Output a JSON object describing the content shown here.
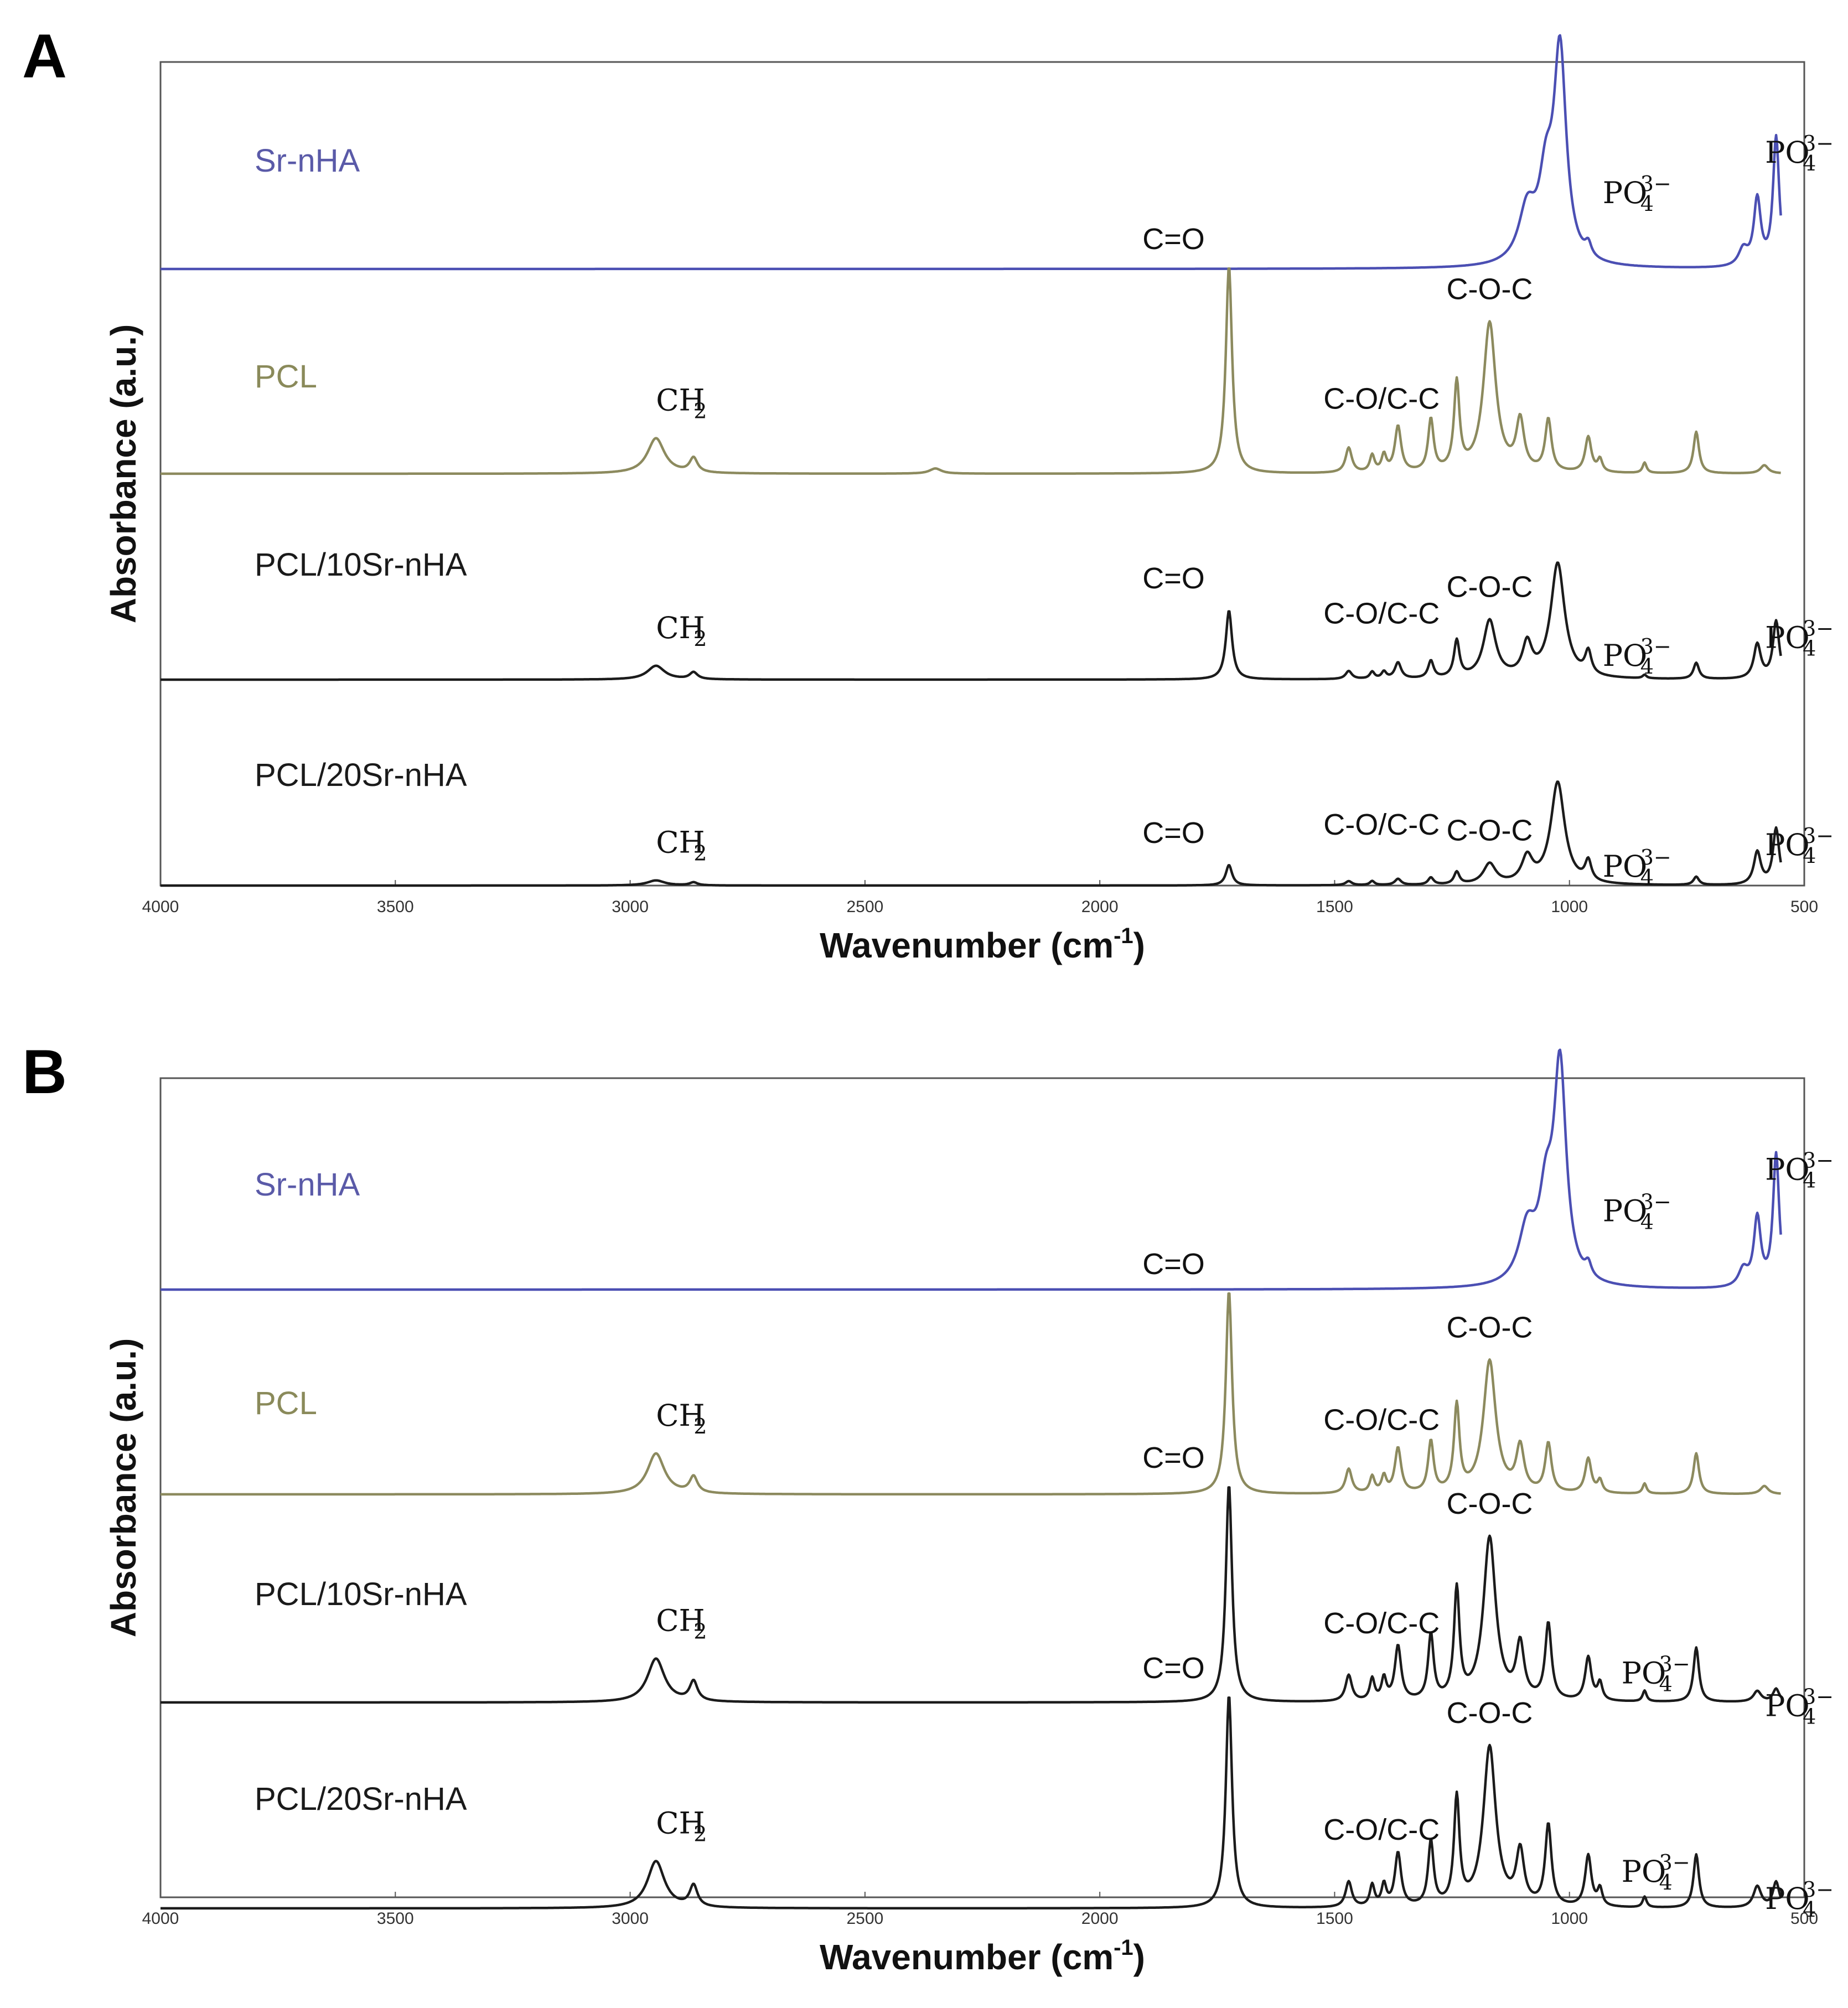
{
  "chart_data": [
    {
      "type": "line",
      "panel": "A",
      "xlabel": "Wavenumber (cm",
      "xlabel_sup": "-1",
      "xlabel_close": ")",
      "ylabel": "Absorbance (a.u.)",
      "xlim": [
        4000,
        500
      ],
      "x_ticks": [
        "4000",
        "3500",
        "3000",
        "2500",
        "2000",
        "1500",
        "1000",
        "500"
      ],
      "grid": false,
      "series": [
        {
          "name": "Sr-nHA",
          "color": "#4b4fb3",
          "label_color": "#5a5aa8",
          "scale": 1.0,
          "peaks": [
            [
              1020,
              1.0,
              16
            ],
            [
              1090,
              0.25,
              22
            ],
            [
              1050,
              0.35,
              18
            ],
            [
              960,
              0.06,
              8
            ],
            [
              600,
              0.32,
              9
            ],
            [
              560,
              0.62,
              8
            ],
            [
              630,
              0.08,
              12
            ]
          ],
          "annotations": [
            {
              "type": "ion",
              "base": "PO",
              "sub": "4",
              "sup": "3−",
              "near": 1000
            },
            {
              "type": "ion",
              "base": "PO",
              "sub": "4",
              "sup": "3−",
              "near": 560
            }
          ]
        },
        {
          "name": "PCL",
          "color": "#8c8a5e",
          "label_color": "#8a8a5a",
          "scale": 1.0,
          "peaks": [
            [
              2945,
              0.17,
              22
            ],
            [
              2865,
              0.07,
              10
            ],
            [
              2350,
              0.025,
              15
            ],
            [
              1725,
              1.0,
              8
            ],
            [
              1470,
              0.12,
              8
            ],
            [
              1420,
              0.08,
              6
            ],
            [
              1395,
              0.08,
              6
            ],
            [
              1365,
              0.22,
              8
            ],
            [
              1295,
              0.25,
              7
            ],
            [
              1240,
              0.42,
              7
            ],
            [
              1170,
              0.72,
              16
            ],
            [
              1105,
              0.24,
              10
            ],
            [
              1045,
              0.25,
              8
            ],
            [
              960,
              0.17,
              8
            ],
            [
              935,
              0.06,
              6
            ],
            [
              840,
              0.05,
              5
            ],
            [
              730,
              0.2,
              7
            ],
            [
              585,
              0.04,
              10
            ]
          ],
          "annotations": [
            {
              "type": "ion",
              "base": "CH",
              "sub": "2",
              "near": 2945
            },
            {
              "type": "text",
              "text": "C=O",
              "near": 1725
            },
            {
              "type": "text",
              "text": "C-O/C-C",
              "near": 1400
            },
            {
              "type": "text",
              "text": "C-O-C",
              "near": 1170
            }
          ]
        },
        {
          "name": "PCL/10Sr-nHA",
          "color": "#1b1b1b",
          "label_color": "#1a1a1a",
          "scale": 0.52,
          "peaks": [
            [
              2945,
              0.12,
              22
            ],
            [
              2865,
              0.06,
              10
            ],
            [
              1725,
              0.6,
              8
            ],
            [
              1470,
              0.07,
              8
            ],
            [
              1420,
              0.06,
              6
            ],
            [
              1395,
              0.06,
              6
            ],
            [
              1365,
              0.14,
              8
            ],
            [
              1295,
              0.15,
              7
            ],
            [
              1240,
              0.32,
              7
            ],
            [
              1170,
              0.5,
              16
            ],
            [
              1090,
              0.28,
              12
            ],
            [
              1025,
              1.0,
              18
            ],
            [
              960,
              0.2,
              8
            ],
            [
              840,
              0.03,
              5
            ],
            [
              730,
              0.14,
              7
            ],
            [
              600,
              0.3,
              9
            ],
            [
              560,
              0.5,
              8
            ]
          ],
          "annotations": [
            {
              "type": "ion",
              "base": "CH",
              "sub": "2",
              "near": 2945
            },
            {
              "type": "text",
              "text": "C=O",
              "near": 1725
            },
            {
              "type": "text",
              "text": "C-O/C-C",
              "near": 1400
            },
            {
              "type": "text",
              "text": "C-O-C",
              "near": 1170
            },
            {
              "type": "ion",
              "base": "PO",
              "sub": "4",
              "sup": "3−",
              "near": 1000
            },
            {
              "type": "ion",
              "base": "PO",
              "sub": "4",
              "sup": "3−",
              "near": 560
            }
          ]
        },
        {
          "name": "PCL/20Sr-nHA",
          "color": "#1b1b1b",
          "label_color": "#1a1a1a",
          "scale": 0.5,
          "peaks": [
            [
              2945,
              0.05,
              22
            ],
            [
              2865,
              0.03,
              10
            ],
            [
              1725,
              0.2,
              8
            ],
            [
              1470,
              0.04,
              8
            ],
            [
              1420,
              0.04,
              6
            ],
            [
              1365,
              0.06,
              8
            ],
            [
              1295,
              0.07,
              7
            ],
            [
              1240,
              0.12,
              7
            ],
            [
              1170,
              0.2,
              16
            ],
            [
              1090,
              0.25,
              14
            ],
            [
              1025,
              1.0,
              18
            ],
            [
              960,
              0.2,
              8
            ],
            [
              730,
              0.08,
              7
            ],
            [
              600,
              0.32,
              9
            ],
            [
              560,
              0.55,
              8
            ]
          ],
          "annotations": [
            {
              "type": "ion",
              "base": "CH",
              "sub": "2",
              "near": 2945
            },
            {
              "type": "text",
              "text": "C=O",
              "near": 1725
            },
            {
              "type": "text",
              "text": "C-O/C-C",
              "near": 1400
            },
            {
              "type": "text",
              "text": "C-O-C",
              "near": 1170
            },
            {
              "type": "ion",
              "base": "PO",
              "sub": "4",
              "sup": "3−",
              "near": 1000
            },
            {
              "type": "ion",
              "base": "PO",
              "sub": "4",
              "sup": "3−",
              "near": 560
            }
          ]
        }
      ]
    },
    {
      "type": "line",
      "panel": "B",
      "xlabel": "Wavenumber (cm",
      "xlabel_sup": "-1",
      "xlabel_close": ")",
      "ylabel": "Absorbance (a.u.)",
      "xlim": [
        4000,
        500
      ],
      "x_ticks": [
        "4000",
        "3500",
        "3000",
        "2500",
        "2000",
        "1500",
        "1000",
        "500"
      ],
      "grid": false,
      "series": [
        {
          "name": "Sr-nHA",
          "color": "#4b4fb3",
          "label_color": "#5a5aa8",
          "scale": 1.0,
          "peaks": [
            [
              1020,
              1.0,
              16
            ],
            [
              1090,
              0.25,
              22
            ],
            [
              1050,
              0.35,
              18
            ],
            [
              960,
              0.06,
              8
            ],
            [
              600,
              0.32,
              9
            ],
            [
              560,
              0.62,
              8
            ],
            [
              630,
              0.08,
              12
            ]
          ],
          "annotations": [
            {
              "type": "ion",
              "base": "PO",
              "sub": "4",
              "sup": "3−",
              "near": 1000
            },
            {
              "type": "ion",
              "base": "PO",
              "sub": "4",
              "sup": "3−",
              "near": 560
            }
          ]
        },
        {
          "name": "PCL",
          "color": "#8c8a5e",
          "label_color": "#8a8a5a",
          "scale": 1.0,
          "peaks": [
            [
              2945,
              0.2,
              22
            ],
            [
              2865,
              0.08,
              10
            ],
            [
              1725,
              1.0,
              8
            ],
            [
              1470,
              0.12,
              8
            ],
            [
              1420,
              0.08,
              6
            ],
            [
              1395,
              0.08,
              6
            ],
            [
              1365,
              0.22,
              8
            ],
            [
              1295,
              0.25,
              7
            ],
            [
              1240,
              0.42,
              7
            ],
            [
              1170,
              0.65,
              16
            ],
            [
              1105,
              0.22,
              10
            ],
            [
              1045,
              0.24,
              8
            ],
            [
              960,
              0.17,
              8
            ],
            [
              935,
              0.06,
              6
            ],
            [
              840,
              0.05,
              5
            ],
            [
              730,
              0.2,
              7
            ],
            [
              585,
              0.04,
              10
            ]
          ],
          "annotations": [
            {
              "type": "ion",
              "base": "CH",
              "sub": "2",
              "near": 2945
            },
            {
              "type": "text",
              "text": "C=O",
              "near": 1725
            },
            {
              "type": "text",
              "text": "C-O/C-C",
              "near": 1400
            },
            {
              "type": "text",
              "text": "C-O-C",
              "near": 1170
            }
          ]
        },
        {
          "name": "PCL/10Sr-nHA",
          "color": "#1b1b1b",
          "label_color": "#1a1a1a",
          "scale": 1.0,
          "peaks": [
            [
              2945,
              0.2,
              22
            ],
            [
              2865,
              0.09,
              10
            ],
            [
              1725,
              1.0,
              8
            ],
            [
              1470,
              0.12,
              8
            ],
            [
              1420,
              0.1,
              6
            ],
            [
              1395,
              0.1,
              6
            ],
            [
              1365,
              0.25,
              8
            ],
            [
              1295,
              0.3,
              7
            ],
            [
              1240,
              0.5,
              7
            ],
            [
              1170,
              0.75,
              16
            ],
            [
              1105,
              0.25,
              10
            ],
            [
              1045,
              0.35,
              8
            ],
            [
              960,
              0.2,
              8
            ],
            [
              935,
              0.08,
              6
            ],
            [
              840,
              0.05,
              5
            ],
            [
              730,
              0.25,
              7
            ],
            [
              600,
              0.05,
              10
            ],
            [
              560,
              0.06,
              8
            ]
          ],
          "annotations": [
            {
              "type": "ion",
              "base": "CH",
              "sub": "2",
              "near": 2945
            },
            {
              "type": "text",
              "text": "C=O",
              "near": 1725
            },
            {
              "type": "text",
              "text": "C-O/C-C",
              "near": 1400
            },
            {
              "type": "text",
              "text": "C-O-C",
              "near": 1170
            },
            {
              "type": "ion",
              "base": "PO",
              "sub": "4",
              "sup": "3−",
              "near": 960
            },
            {
              "type": "ion",
              "base": "PO",
              "sub": "4",
              "sup": "3−",
              "near": 560
            }
          ]
        },
        {
          "name": "PCL/20Sr-nHA",
          "color": "#1b1b1b",
          "label_color": "#1a1a1a",
          "scale": 1.0,
          "peaks": [
            [
              2945,
              0.22,
              22
            ],
            [
              2865,
              0.1,
              10
            ],
            [
              1725,
              1.0,
              8
            ],
            [
              1470,
              0.12,
              8
            ],
            [
              1420,
              0.1,
              6
            ],
            [
              1395,
              0.1,
              6
            ],
            [
              1365,
              0.25,
              8
            ],
            [
              1295,
              0.3,
              7
            ],
            [
              1240,
              0.5,
              7
            ],
            [
              1170,
              0.75,
              16
            ],
            [
              1105,
              0.25,
              10
            ],
            [
              1045,
              0.38,
              8
            ],
            [
              960,
              0.24,
              8
            ],
            [
              935,
              0.08,
              6
            ],
            [
              840,
              0.05,
              5
            ],
            [
              730,
              0.25,
              7
            ],
            [
              600,
              0.1,
              10
            ],
            [
              560,
              0.12,
              8
            ]
          ],
          "annotations": [
            {
              "type": "ion",
              "base": "CH",
              "sub": "2",
              "near": 2945
            },
            {
              "type": "text",
              "text": "C=O",
              "near": 1725
            },
            {
              "type": "text",
              "text": "C-O/C-C",
              "near": 1400
            },
            {
              "type": "text",
              "text": "C-O-C",
              "near": 1170
            },
            {
              "type": "ion",
              "base": "PO",
              "sub": "4",
              "sup": "3−",
              "near": 960
            },
            {
              "type": "ion",
              "base": "PO",
              "sub": "4",
              "sup": "3−",
              "near": 560
            }
          ]
        }
      ]
    }
  ]
}
